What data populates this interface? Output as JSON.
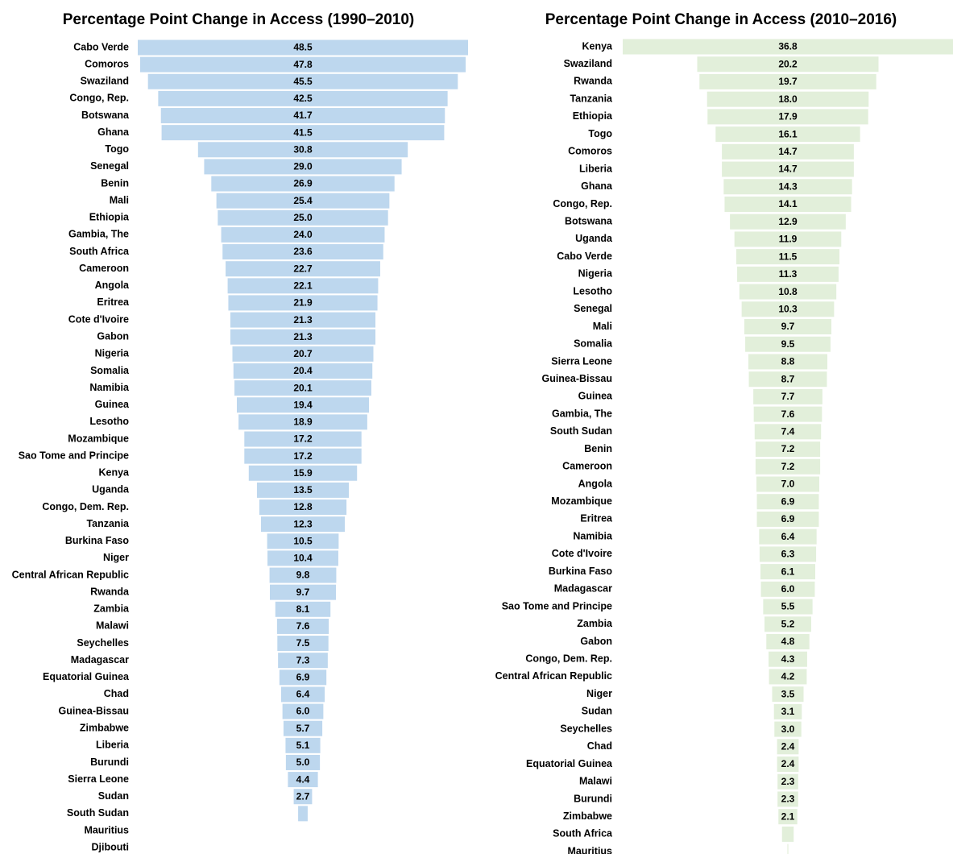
{
  "chart_data": [
    {
      "type": "bar",
      "title": "Percentage Point Change in Access (1990–2010)",
      "color": "#bdd7ee",
      "xlim": [
        0,
        48.5
      ],
      "categories": [
        "Cabo Verde",
        "Comoros",
        "Swaziland",
        "Congo, Rep.",
        "Botswana",
        "Ghana",
        "Togo",
        "Senegal",
        "Benin",
        "Mali",
        "Ethiopia",
        "Gambia, The",
        "South Africa",
        "Cameroon",
        "Angola",
        "Eritrea",
        "Cote d'Ivoire",
        "Gabon",
        "Nigeria",
        "Somalia",
        "Namibia",
        "Guinea",
        "Lesotho",
        "Mozambique",
        "Sao Tome and Principe",
        "Kenya",
        "Uganda",
        "Congo, Dem. Rep.",
        "Tanzania",
        "Burkina Faso",
        "Niger",
        "Central African Republic",
        "Rwanda",
        "Zambia",
        "Malawi",
        "Seychelles",
        "Madagascar",
        "Equatorial Guinea",
        "Chad",
        "Guinea-Bissau",
        "Zimbabwe",
        "Liberia",
        "Burundi",
        "Sierra Leone",
        "Sudan",
        "South Sudan",
        "Mauritius",
        "Djibouti"
      ],
      "values": [
        48.5,
        47.8,
        45.5,
        42.5,
        41.7,
        41.5,
        30.8,
        29.0,
        26.9,
        25.4,
        25.0,
        24.0,
        23.6,
        22.7,
        22.1,
        21.9,
        21.3,
        21.3,
        20.7,
        20.4,
        20.1,
        19.4,
        18.9,
        17.2,
        17.2,
        15.9,
        13.5,
        12.8,
        12.3,
        10.5,
        10.4,
        9.8,
        9.7,
        8.1,
        7.6,
        7.5,
        7.3,
        6.9,
        6.4,
        6.0,
        5.7,
        5.1,
        5.0,
        4.4,
        2.7,
        1.4,
        null,
        null
      ],
      "value_labels": [
        "48.5",
        "47.8",
        "45.5",
        "42.5",
        "41.7",
        "41.5",
        "30.8",
        "29.0",
        "26.9",
        "25.4",
        "25.0",
        "24.0",
        "23.6",
        "22.7",
        "22.1",
        "21.9",
        "21.3",
        "21.3",
        "20.7",
        "20.4",
        "20.1",
        "19.4",
        "18.9",
        "17.2",
        "17.2",
        "15.9",
        "13.5",
        "12.8",
        "12.3",
        "10.5",
        "10.4",
        "9.8",
        "9.7",
        "8.1",
        "7.6",
        "7.5",
        "7.3",
        "6.9",
        "6.4",
        "6.0",
        "5.7",
        "5.1",
        "5.0",
        "4.4",
        "2.7",
        null,
        null,
        null
      ]
    },
    {
      "type": "bar",
      "title": "Percentage Point Change in Access (2010–2016)",
      "color": "#e2efda",
      "xlim": [
        0,
        36.8
      ],
      "categories": [
        "Kenya",
        "Swaziland",
        "Rwanda",
        "Tanzania",
        "Ethiopia",
        "Togo",
        "Comoros",
        "Liberia",
        "Ghana",
        "Congo, Rep.",
        "Botswana",
        "Uganda",
        "Cabo Verde",
        "Nigeria",
        "Lesotho",
        "Senegal",
        "Mali",
        "Somalia",
        "Sierra Leone",
        "Guinea-Bissau",
        "Guinea",
        "Gambia, The",
        "South Sudan",
        "Benin",
        "Cameroon",
        "Angola",
        "Mozambique",
        "Eritrea",
        "Namibia",
        "Cote d'Ivoire",
        "Burkina Faso",
        "Madagascar",
        "Sao Tome and Principe",
        "Zambia",
        "Gabon",
        "Congo, Dem. Rep.",
        "Central African Republic",
        "Niger",
        "Sudan",
        "Seychelles",
        "Chad",
        "Equatorial Guinea",
        "Malawi",
        "Burundi",
        "Zimbabwe",
        "South Africa",
        "Mauritius"
      ],
      "values": [
        36.8,
        20.2,
        19.7,
        18.0,
        17.9,
        16.1,
        14.7,
        14.7,
        14.3,
        14.1,
        12.9,
        11.9,
        11.5,
        11.3,
        10.8,
        10.3,
        9.7,
        9.5,
        8.8,
        8.7,
        7.7,
        7.6,
        7.4,
        7.2,
        7.2,
        7.0,
        6.9,
        6.9,
        6.4,
        6.3,
        6.1,
        6.0,
        5.5,
        5.2,
        4.8,
        4.3,
        4.2,
        3.5,
        3.1,
        3.0,
        2.4,
        2.4,
        2.3,
        2.3,
        2.1,
        1.3,
        0.1
      ],
      "value_labels": [
        "36.8",
        "20.2",
        "19.7",
        "18.0",
        "17.9",
        "16.1",
        "14.7",
        "14.7",
        "14.3",
        "14.1",
        "12.9",
        "11.9",
        "11.5",
        "11.3",
        "10.8",
        "10.3",
        "9.7",
        "9.5",
        "8.8",
        "8.7",
        "7.7",
        "7.6",
        "7.4",
        "7.2",
        "7.2",
        "7.0",
        "6.9",
        "6.9",
        "6.4",
        "6.3",
        "6.1",
        "6.0",
        "5.5",
        "5.2",
        "4.8",
        "4.3",
        "4.2",
        "3.5",
        "3.1",
        "3.0",
        "2.4",
        "2.4",
        "2.3",
        "2.3",
        "2.1",
        null,
        null
      ]
    }
  ]
}
